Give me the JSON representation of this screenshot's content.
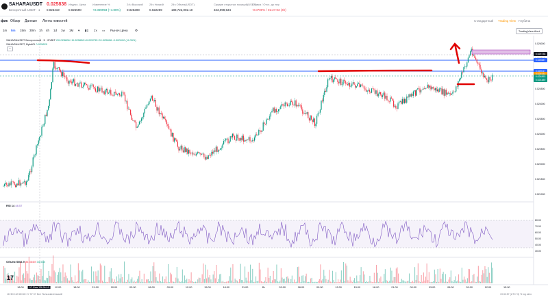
{
  "header": {
    "symbol": "SAHARAUSDT",
    "subtitle": "Бессрочный USDT · 1",
    "last_price": "0.025838",
    "prev_price": "0.025419",
    "stats": [
      {
        "label": "Индекс. Цена",
        "value": "0.025590",
        "tone": "plain"
      },
      {
        "label": "Изменение %",
        "value": "+0.000993 (+4.06%)",
        "tone": "green"
      },
      {
        "label": "24ч Высокий",
        "value": "0.026208",
        "tone": "plain"
      },
      {
        "label": "24ч Низкий",
        "value": "0.022269",
        "tone": "plain"
      },
      {
        "label": "24ч Объем(USDT)",
        "value": "188,722,002.10",
        "tone": "plain"
      },
      {
        "label": "Средне открытых позиций(USDT)",
        "value": "343,098,534",
        "tone": "plain"
      },
      {
        "label": "Ставка / Отсч. до пер",
        "value": "-0.0700% / 01:27:03 (4h)",
        "tone": "red"
      }
    ]
  },
  "tabs": {
    "items": [
      "фик",
      "Обзор",
      "Данные",
      "Лента новостей"
    ],
    "right": [
      "Стандартный",
      "Trading View",
      "Глубина"
    ]
  },
  "toolbar": {
    "timeframes": [
      "1m",
      "5m",
      "15m",
      "30m",
      "1h",
      "4h",
      "1d",
      "1w",
      "1M"
    ],
    "active_tf": "5m",
    "indicator_label": "Индикаторы",
    "price_type": "Рыноч.Цена",
    "alert_label": "TradingView Alert"
  },
  "legend": {
    "line1": "SAHARAUSDT Бессрочный · 5 · BYBIT",
    "ohlc": "O0.025806  H0.025838  L0.025795  C0.025818  -0.000012 (-0.05%)",
    "line2": "SAHARAUSDT, BybitOI",
    "oi_value": "0.025820"
  },
  "rsi": {
    "label": "RSI 14",
    "value": "48.57"
  },
  "volume": {
    "label": "Объём SMA 9",
    "v1": "96.364M",
    "v2": "34.534"
  },
  "axis": {
    "x_labels": [
      "18:00",
      "17 Фев '25 06:10",
      "12:00",
      "18:00",
      "21:00",
      "00:00",
      "03:00",
      "06:00",
      "09:00",
      "12:00",
      "15:00",
      "18:00",
      "21:00",
      "Вт",
      "03:00",
      "06:00",
      "09:00",
      "12:00",
      "15:00",
      "18:00",
      "21:00",
      "00:00",
      "03:00",
      "06:00",
      "09:00",
      "12:00",
      "15:00"
    ],
    "y_labels": [
      "0.026000",
      "0.025500",
      "0.025000",
      "0.024500",
      "0.024000",
      "0.023500",
      "0.023000",
      "0.022500",
      "0.022000",
      "0.021500",
      "0.021000"
    ],
    "rsi_y": [
      "80.00",
      "70.00",
      "60.00",
      "50.00",
      "40.00",
      "30.00"
    ],
    "tags": [
      {
        "value": "0.025738",
        "color": "#131722"
      },
      {
        "value": "0.025587",
        "color": "#2962ff"
      },
      {
        "value": "0.025017",
        "color": "#2962ff"
      },
      {
        "value": "0.024933",
        "color": "#ff9800"
      },
      {
        "value": "0.024893",
        "color": "#089981"
      },
      {
        "value": "0.024489",
        "color": "#089981"
      }
    ]
  },
  "footer": {
    "left": "1D  5D  1M  3M  6M  1Y  3Y  5Y  Все  Пользовательский",
    "right": "19:32:57 (UTC+3)   %   log   авто"
  },
  "colors": {
    "up": "#089981",
    "down": "#f23645",
    "hline": "#2962ff",
    "rsi": "#7e57c2",
    "draw": "#e00000"
  }
}
